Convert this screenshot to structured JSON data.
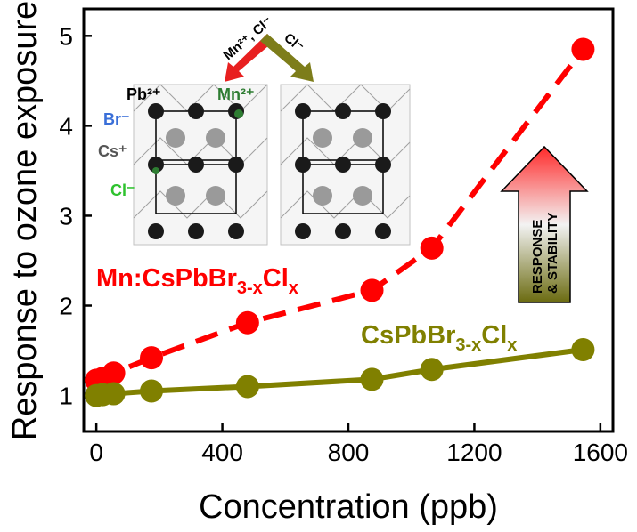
{
  "chart_data": {
    "type": "scatter",
    "xlabel": "Concentration (ppb)",
    "ylabel": "Response to ozone exposure",
    "xlim": [
      -40,
      1640
    ],
    "ylim": [
      0.6,
      5.3
    ],
    "xticks": [
      0,
      400,
      800,
      1200,
      1600
    ],
    "yticks": [
      1,
      2,
      3,
      4,
      5
    ],
    "grid": false,
    "series": [
      {
        "name_main": "Mn:CsPbBr",
        "name_sub": "3-x",
        "name_cl": "Cl",
        "name_sub2": "x",
        "color": "#ff0000",
        "line_style": "dashed",
        "x": [
          0,
          20,
          55,
          175,
          480,
          875,
          1065,
          1545
        ],
        "y": [
          1.17,
          1.19,
          1.25,
          1.42,
          1.81,
          2.17,
          2.64,
          4.85
        ]
      },
      {
        "name_main": "CsPbBr",
        "name_sub": "3-x",
        "name_cl": "Cl",
        "name_sub2": "x",
        "color": "#808000",
        "line_style": "solid",
        "x": [
          0,
          20,
          55,
          175,
          480,
          875,
          1065,
          1545
        ],
        "y": [
          1.0,
          1.01,
          1.02,
          1.05,
          1.1,
          1.18,
          1.29,
          1.51
        ]
      }
    ]
  },
  "inset": {
    "arrow_left_label": "Mn²⁺, Cl⁻",
    "arrow_right_label": "Cl⁻",
    "ions": [
      {
        "text": "Pb²⁺",
        "color": "#000000"
      },
      {
        "text": "Br⁻",
        "color": "#3a6fd8"
      },
      {
        "text": "Cs⁺",
        "color": "#555555"
      },
      {
        "text": "Cl⁻",
        "color": "#2ec22e"
      },
      {
        "text": "Mn²⁺",
        "color": "#2e7d32"
      }
    ]
  },
  "big_arrow": {
    "line1": "RESPONSE",
    "line2": "& STABILITY",
    "top_color": "#ff2a2a",
    "bottom_color": "#6b6b10"
  }
}
